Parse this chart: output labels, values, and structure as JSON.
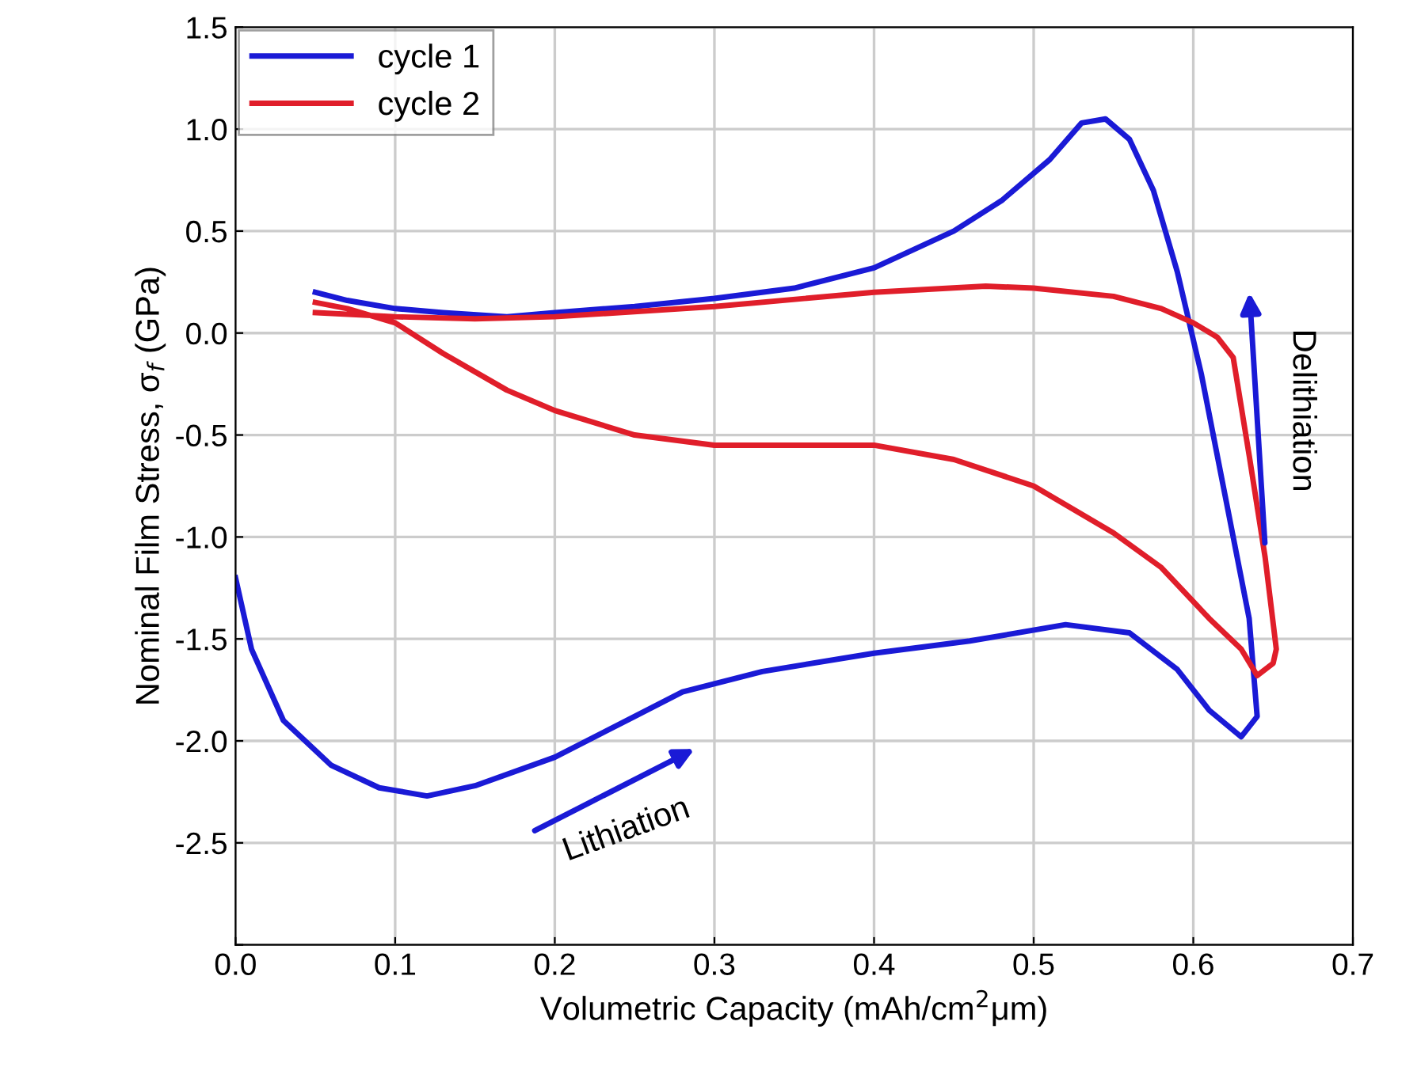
{
  "chart_data": {
    "type": "line",
    "xlabel": "Volumetric Capacity (mAh/cm$^{2}$μm)",
    "ylabel": "Nominal Film Stress, σ$_{f}$ (GPa)",
    "xlim": [
      0,
      0.7
    ],
    "ylim": [
      -3.0,
      1.5
    ],
    "xticks": [
      {
        "value": 0,
        "label": "0.0"
      },
      0.1,
      0.2,
      0.3,
      0.4,
      0.5,
      0.6,
      0.7
    ],
    "yticks": [
      {
        "value": -3,
        "label": null
      },
      -2.5,
      {
        "value": -2,
        "label": "-2.0"
      },
      -1.5,
      {
        "value": -1,
        "label": "-1.0"
      },
      -0.5,
      {
        "value": 0,
        "label": "0.0"
      },
      0.5,
      {
        "value": 1,
        "label": "1.0"
      },
      1.5
    ],
    "grid": true,
    "legend": "top left",
    "line_style": "solid",
    "marker": "none",
    "annotations": [
      "Lithiation",
      "Delithiation"
    ],
    "series": [
      {
        "name": "cycle 1",
        "color": "#1a1ad6",
        "x": [
          0.0,
          0.01,
          0.03,
          0.06,
          0.09,
          0.12,
          0.15,
          0.2,
          0.25,
          0.28,
          0.33,
          0.4,
          0.46,
          0.52,
          0.56,
          0.59,
          0.61,
          0.63,
          0.64,
          0.635,
          0.62,
          0.605,
          0.59,
          0.575,
          0.56,
          0.545,
          0.53,
          0.51,
          0.48,
          0.45,
          0.4,
          0.35,
          0.3,
          0.25,
          0.2,
          0.17,
          0.13,
          0.1,
          0.07,
          0.05
        ],
        "values": [
          -1.2,
          -1.55,
          -1.9,
          -2.12,
          -2.23,
          -2.27,
          -2.22,
          -2.08,
          -1.88,
          -1.76,
          -1.66,
          -1.57,
          -1.51,
          -1.43,
          -1.47,
          -1.65,
          -1.85,
          -1.98,
          -1.88,
          -1.4,
          -0.8,
          -0.2,
          0.3,
          0.7,
          0.95,
          1.05,
          1.03,
          0.85,
          0.65,
          0.5,
          0.32,
          0.22,
          0.17,
          0.13,
          0.1,
          0.08,
          0.1,
          0.12,
          0.16,
          0.2
        ]
      },
      {
        "name": "cycle 2",
        "color": "#e01e2a",
        "x": [
          0.05,
          0.07,
          0.1,
          0.13,
          0.17,
          0.2,
          0.25,
          0.3,
          0.35,
          0.4,
          0.45,
          0.5,
          0.55,
          0.58,
          0.61,
          0.63,
          0.64,
          0.65,
          0.652,
          0.645,
          0.635,
          0.625,
          0.615,
          0.6,
          0.58,
          0.55,
          0.5,
          0.47,
          0.4,
          0.3,
          0.2,
          0.15,
          0.1,
          0.05
        ],
        "values": [
          0.15,
          0.12,
          0.05,
          -0.1,
          -0.28,
          -0.38,
          -0.5,
          -0.55,
          -0.55,
          -0.55,
          -0.62,
          -0.75,
          -0.98,
          -1.15,
          -1.4,
          -1.55,
          -1.68,
          -1.62,
          -1.55,
          -1.1,
          -0.6,
          -0.12,
          -0.02,
          0.05,
          0.12,
          0.18,
          0.22,
          0.23,
          0.2,
          0.13,
          0.08,
          0.07,
          0.08,
          0.1
        ]
      }
    ]
  }
}
